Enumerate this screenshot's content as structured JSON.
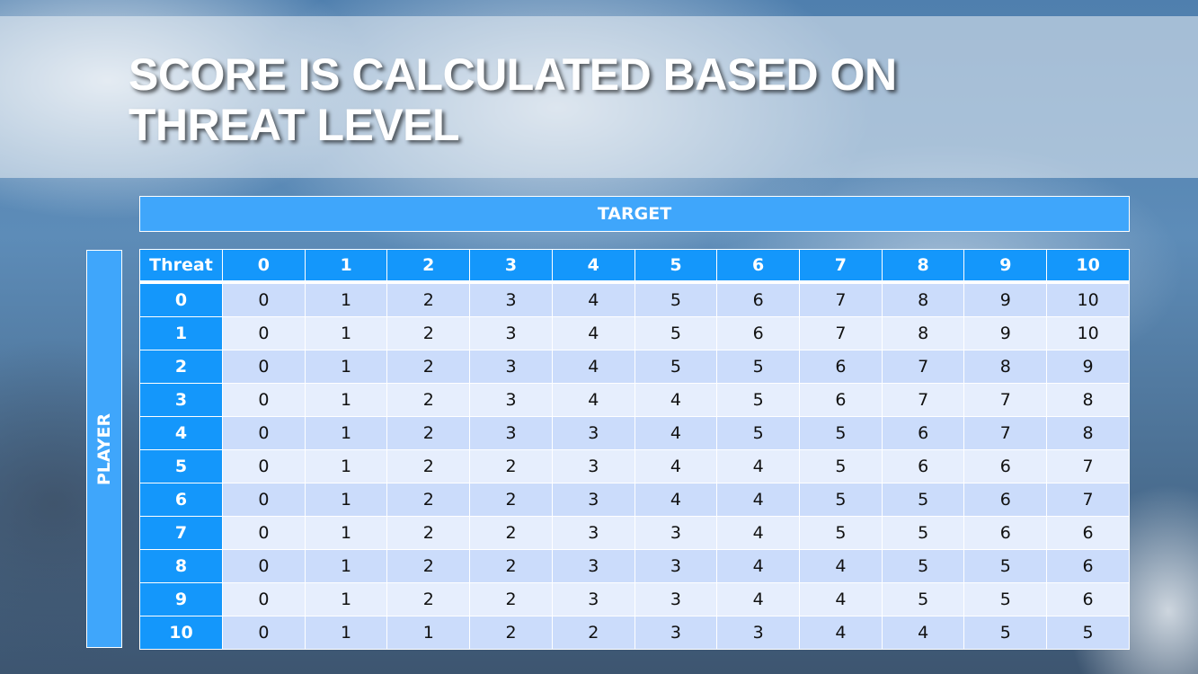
{
  "title": "Score is calculated based on threat level",
  "target_label": "TARGET",
  "player_label": "PLAYER",
  "colors": {
    "header": "#1497fb",
    "banner": "#3fa6fb",
    "row_odd": "#cbdcfb",
    "row_even": "#e6eefd"
  },
  "table": {
    "corner": "Threat",
    "columns": [
      "0",
      "1",
      "2",
      "3",
      "4",
      "5",
      "6",
      "7",
      "8",
      "9",
      "10"
    ],
    "rows": [
      {
        "label": "0",
        "values": [
          "0",
          "1",
          "2",
          "3",
          "4",
          "5",
          "6",
          "7",
          "8",
          "9",
          "10"
        ]
      },
      {
        "label": "1",
        "values": [
          "0",
          "1",
          "2",
          "3",
          "4",
          "5",
          "6",
          "7",
          "8",
          "9",
          "10"
        ]
      },
      {
        "label": "2",
        "values": [
          "0",
          "1",
          "2",
          "3",
          "4",
          "5",
          "5",
          "6",
          "7",
          "8",
          "9"
        ]
      },
      {
        "label": "3",
        "values": [
          "0",
          "1",
          "2",
          "3",
          "4",
          "4",
          "5",
          "6",
          "7",
          "7",
          "8"
        ]
      },
      {
        "label": "4",
        "values": [
          "0",
          "1",
          "2",
          "3",
          "3",
          "4",
          "5",
          "5",
          "6",
          "7",
          "8"
        ]
      },
      {
        "label": "5",
        "values": [
          "0",
          "1",
          "2",
          "2",
          "3",
          "4",
          "4",
          "5",
          "6",
          "6",
          "7"
        ]
      },
      {
        "label": "6",
        "values": [
          "0",
          "1",
          "2",
          "2",
          "3",
          "4",
          "4",
          "5",
          "5",
          "6",
          "7"
        ]
      },
      {
        "label": "7",
        "values": [
          "0",
          "1",
          "2",
          "2",
          "3",
          "3",
          "4",
          "5",
          "5",
          "6",
          "6"
        ]
      },
      {
        "label": "8",
        "values": [
          "0",
          "1",
          "2",
          "2",
          "3",
          "3",
          "4",
          "4",
          "5",
          "5",
          "6"
        ]
      },
      {
        "label": "9",
        "values": [
          "0",
          "1",
          "2",
          "2",
          "3",
          "3",
          "4",
          "4",
          "5",
          "5",
          "6"
        ]
      },
      {
        "label": "10",
        "values": [
          "0",
          "1",
          "1",
          "2",
          "2",
          "3",
          "3",
          "4",
          "4",
          "5",
          "5"
        ]
      }
    ]
  }
}
